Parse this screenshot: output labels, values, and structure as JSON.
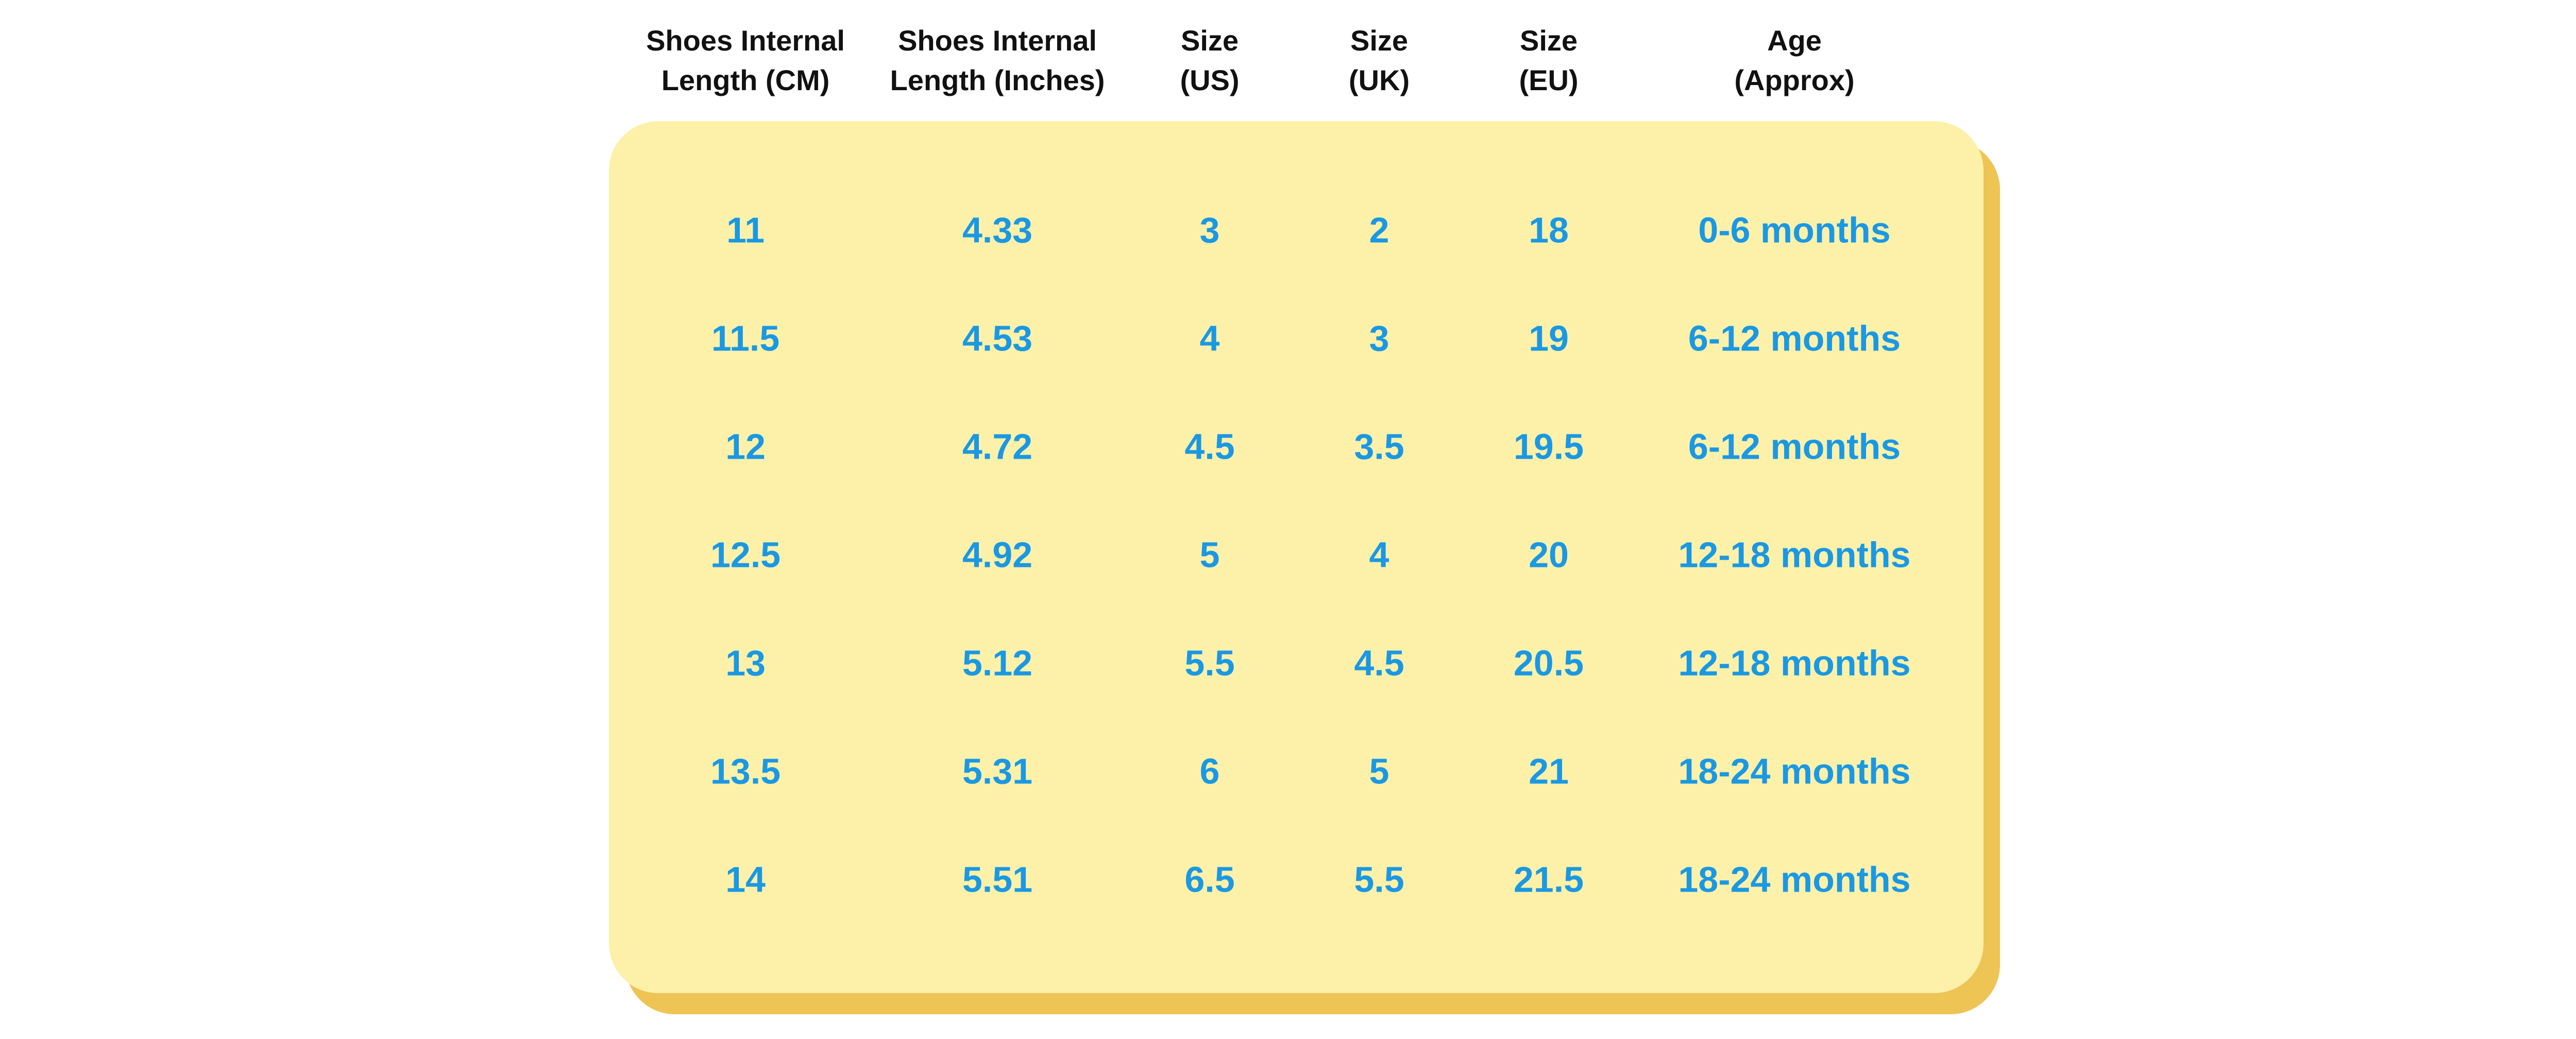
{
  "table": {
    "headers": [
      [
        "Shoes Internal",
        "Length (CM)"
      ],
      [
        "Shoes Internal",
        "Length (Inches)"
      ],
      [
        "Size",
        "(US)"
      ],
      [
        "Size",
        "(UK)"
      ],
      [
        "Size",
        "(EU)"
      ],
      [
        "Age",
        "(Approx)"
      ]
    ],
    "rows": [
      [
        11,
        4.33,
        3,
        2,
        18,
        "0-6 months"
      ],
      [
        11.5,
        4.53,
        4,
        3,
        19,
        "6-12 months"
      ],
      [
        12,
        4.72,
        4.5,
        3.5,
        19.5,
        "6-12 months"
      ],
      [
        12.5,
        4.92,
        5,
        4,
        20,
        "12-18 months"
      ],
      [
        13,
        5.12,
        5.5,
        4.5,
        20.5,
        "12-18 months"
      ],
      [
        13.5,
        5.31,
        6,
        5,
        21,
        "18-24 months"
      ],
      [
        14,
        5.51,
        6.5,
        5.5,
        21.5,
        "18-24 months"
      ]
    ]
  }
}
